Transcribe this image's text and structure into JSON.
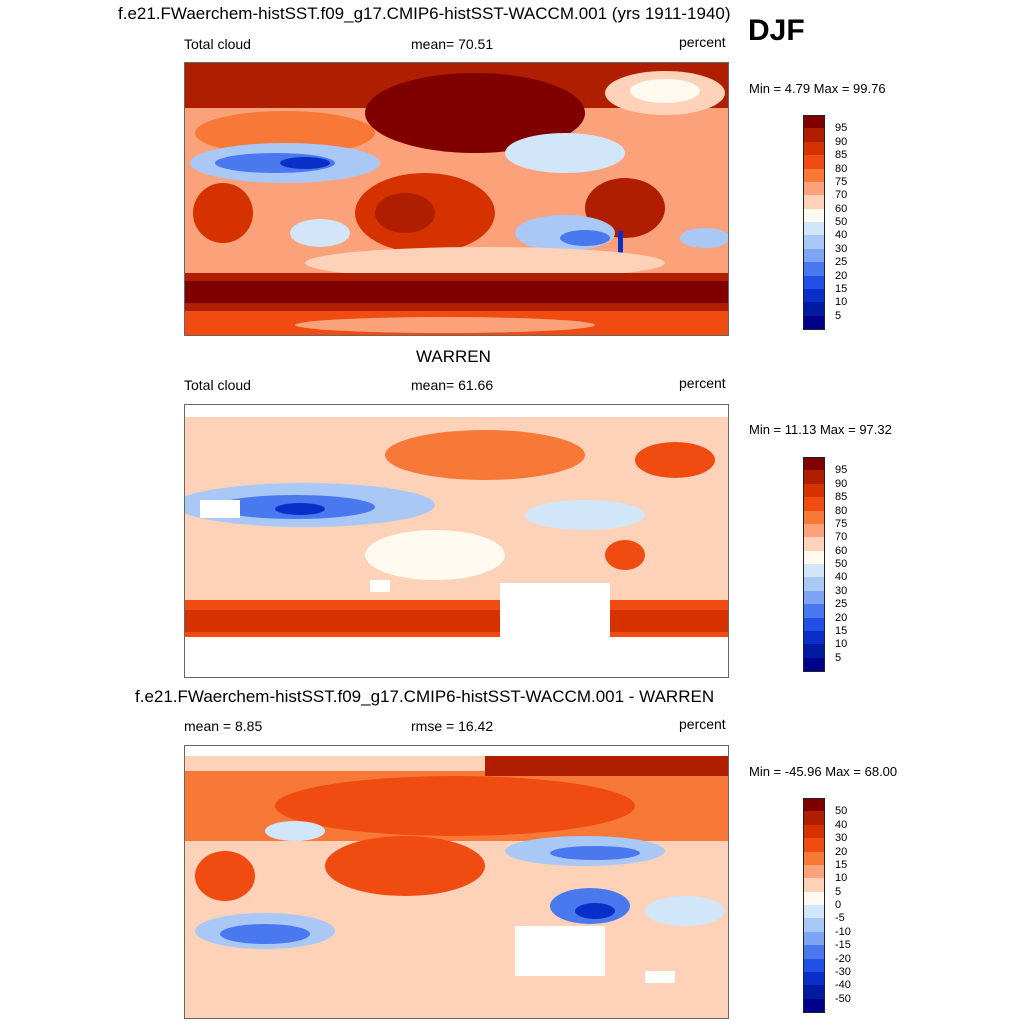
{
  "season": "DJF",
  "panels": [
    {
      "title": "f.e21.FWaerchem-histSST.f09_g17.CMIP6-histSST-WACCM.001 (yrs 1911-1940)",
      "left_label": "Total cloud",
      "center_label": "mean=  70.51",
      "units": "percent",
      "minmax": "Min =   4.79 Max =  99.76",
      "colorbar_labels": [
        "95",
        "90",
        "85",
        "80",
        "75",
        "70",
        "60",
        "50",
        "40",
        "30",
        "25",
        "20",
        "15",
        "10",
        "5"
      ]
    },
    {
      "title": "WARREN",
      "left_label": "Total cloud",
      "center_label": "mean=  61.66",
      "units": "percent",
      "minmax": "Min =  11.13 Max =  97.32",
      "colorbar_labels": [
        "95",
        "90",
        "85",
        "80",
        "75",
        "70",
        "60",
        "50",
        "40",
        "30",
        "25",
        "20",
        "15",
        "10",
        "5"
      ]
    },
    {
      "title": "f.e21.FWaerchem-histSST.f09_g17.CMIP6-histSST-WACCM.001 - WARREN",
      "left_label": "mean =   8.85",
      "center_label": "rmse =  16.42",
      "units": "percent",
      "minmax": "Min = -45.96 Max =  68.00",
      "colorbar_labels": [
        "50",
        "40",
        "30",
        "20",
        "15",
        "10",
        "5",
        "0",
        "-5",
        "-10",
        "-15",
        "-20",
        "-30",
        "-40",
        "-50"
      ]
    }
  ],
  "colors": {
    "scale": [
      "#800000",
      "#b01e00",
      "#d63200",
      "#f04b10",
      "#f87838",
      "#fca27a",
      "#fdd2b8",
      "#fffaf0",
      "#d2e6fa",
      "#aac8f6",
      "#7da5f4",
      "#4a78ee",
      "#2050e6",
      "#0a2ec8",
      "#001aa0",
      "#00008a"
    ]
  }
}
